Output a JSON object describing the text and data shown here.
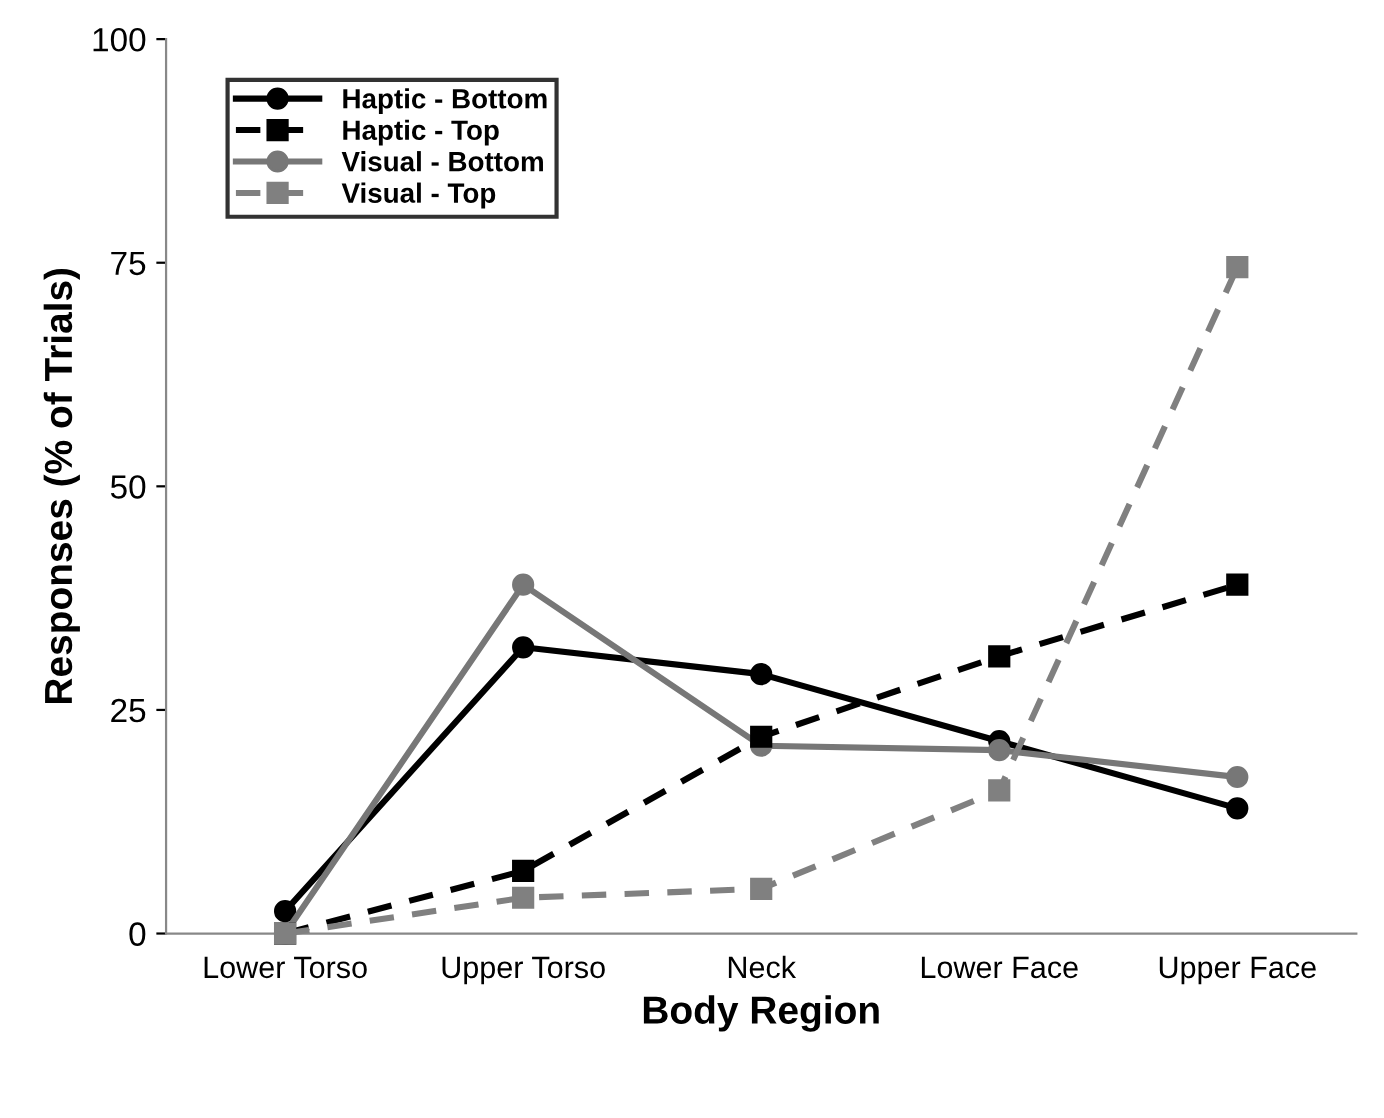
{
  "chart_data": {
    "type": "line",
    "xlabel": "Body Region",
    "ylabel": "Responses (% of Trials)",
    "categories": [
      "Lower Torso",
      "Upper Torso",
      "Neck",
      "Lower Face",
      "Upper Face"
    ],
    "series": [
      {
        "name": "Haptic - Bottom",
        "color": "#000000",
        "marker": "circle",
        "line_style": "solid",
        "values": [
          2.5,
          32,
          29,
          21.5,
          14
        ]
      },
      {
        "name": "Haptic - Top",
        "color": "#000000",
        "marker": "square",
        "line_style": "dashed",
        "values": [
          0,
          7,
          22,
          31,
          39
        ]
      },
      {
        "name": "Visual - Bottom",
        "color": "#777777",
        "marker": "circle",
        "line_style": "solid",
        "values": [
          0,
          39,
          21,
          20.5,
          17.5
        ]
      },
      {
        "name": "Visual - Top",
        "color": "#808080",
        "marker": "square",
        "line_style": "dashed",
        "values": [
          0,
          4,
          5,
          16,
          74.5
        ]
      }
    ],
    "ylim": [
      0,
      100
    ],
    "yticks": [
      0,
      25,
      50,
      75,
      100
    ],
    "grid": false,
    "legend": "top left"
  }
}
